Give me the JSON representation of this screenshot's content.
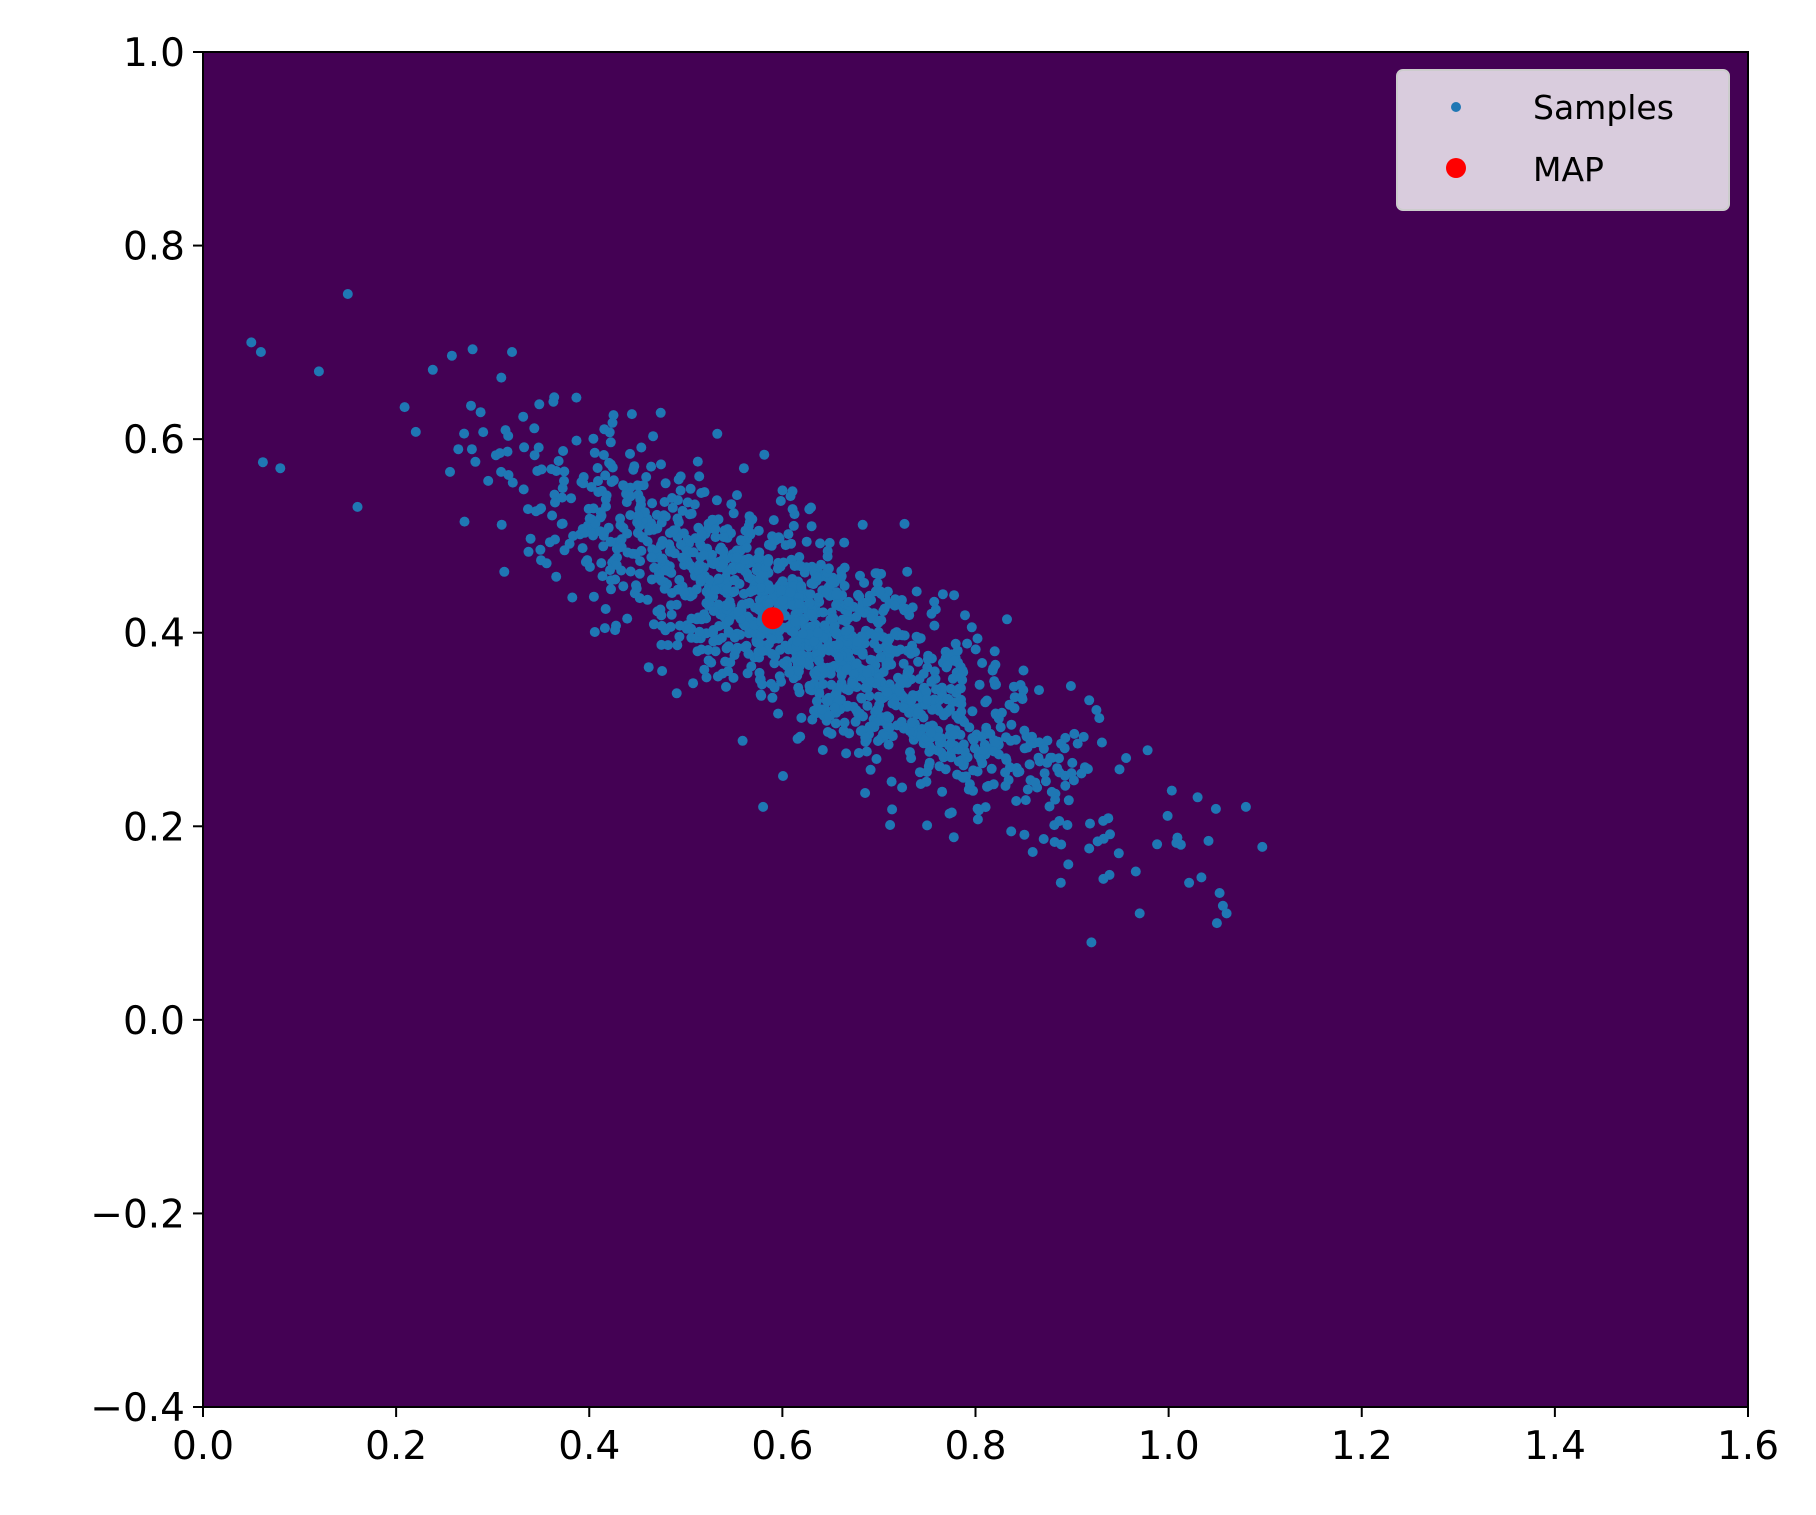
{
  "chart_data": {
    "type": "scatter",
    "title": "",
    "xlabel": "",
    "ylabel": "",
    "xlim": [
      0.0,
      1.6
    ],
    "ylim": [
      -0.4,
      1.0
    ],
    "x_ticks": [
      "0.0",
      "0.2",
      "0.4",
      "0.6",
      "0.8",
      "1.0",
      "1.2",
      "1.4",
      "1.6"
    ],
    "y_ticks": [
      "1.0",
      "0.8",
      "0.6",
      "0.4",
      "0.2",
      "0.0",
      "−0.2",
      "−0.4"
    ],
    "grid": false,
    "background": {
      "kind": "filled-contour",
      "colormap": "viridis",
      "center": [
        0.59,
        0.415
      ],
      "orientation": "negative correlation, major axis descending left-to-right"
    },
    "legend": {
      "placement": "top-right",
      "entries": [
        {
          "label": "Samples",
          "marker": "small dot",
          "color": "#1f77b4"
        },
        {
          "label": "MAP",
          "marker": "large dot",
          "color": "#ff0000"
        }
      ]
    },
    "series": [
      {
        "name": "Samples",
        "color": "#1f77b4",
        "count": 1500,
        "mean": [
          0.63,
          0.4
        ],
        "spread_x": 0.145,
        "spread_y": 0.095,
        "correlation": -0.85,
        "outliers": [
          [
            0.05,
            0.7
          ],
          [
            0.06,
            0.69
          ],
          [
            0.08,
            0.57
          ],
          [
            0.12,
            0.67
          ],
          [
            0.15,
            0.75
          ],
          [
            0.16,
            0.53
          ],
          [
            0.32,
            0.69
          ],
          [
            0.58,
            0.22
          ],
          [
            0.92,
            0.08
          ],
          [
            1.05,
            0.1
          ],
          [
            1.06,
            0.11
          ],
          [
            1.08,
            0.22
          ],
          [
            1.03,
            0.23
          ],
          [
            0.97,
            0.11
          ]
        ]
      },
      {
        "name": "MAP",
        "color": "#ff0000",
        "points": [
          [
            0.59,
            0.415
          ]
        ]
      }
    ]
  }
}
